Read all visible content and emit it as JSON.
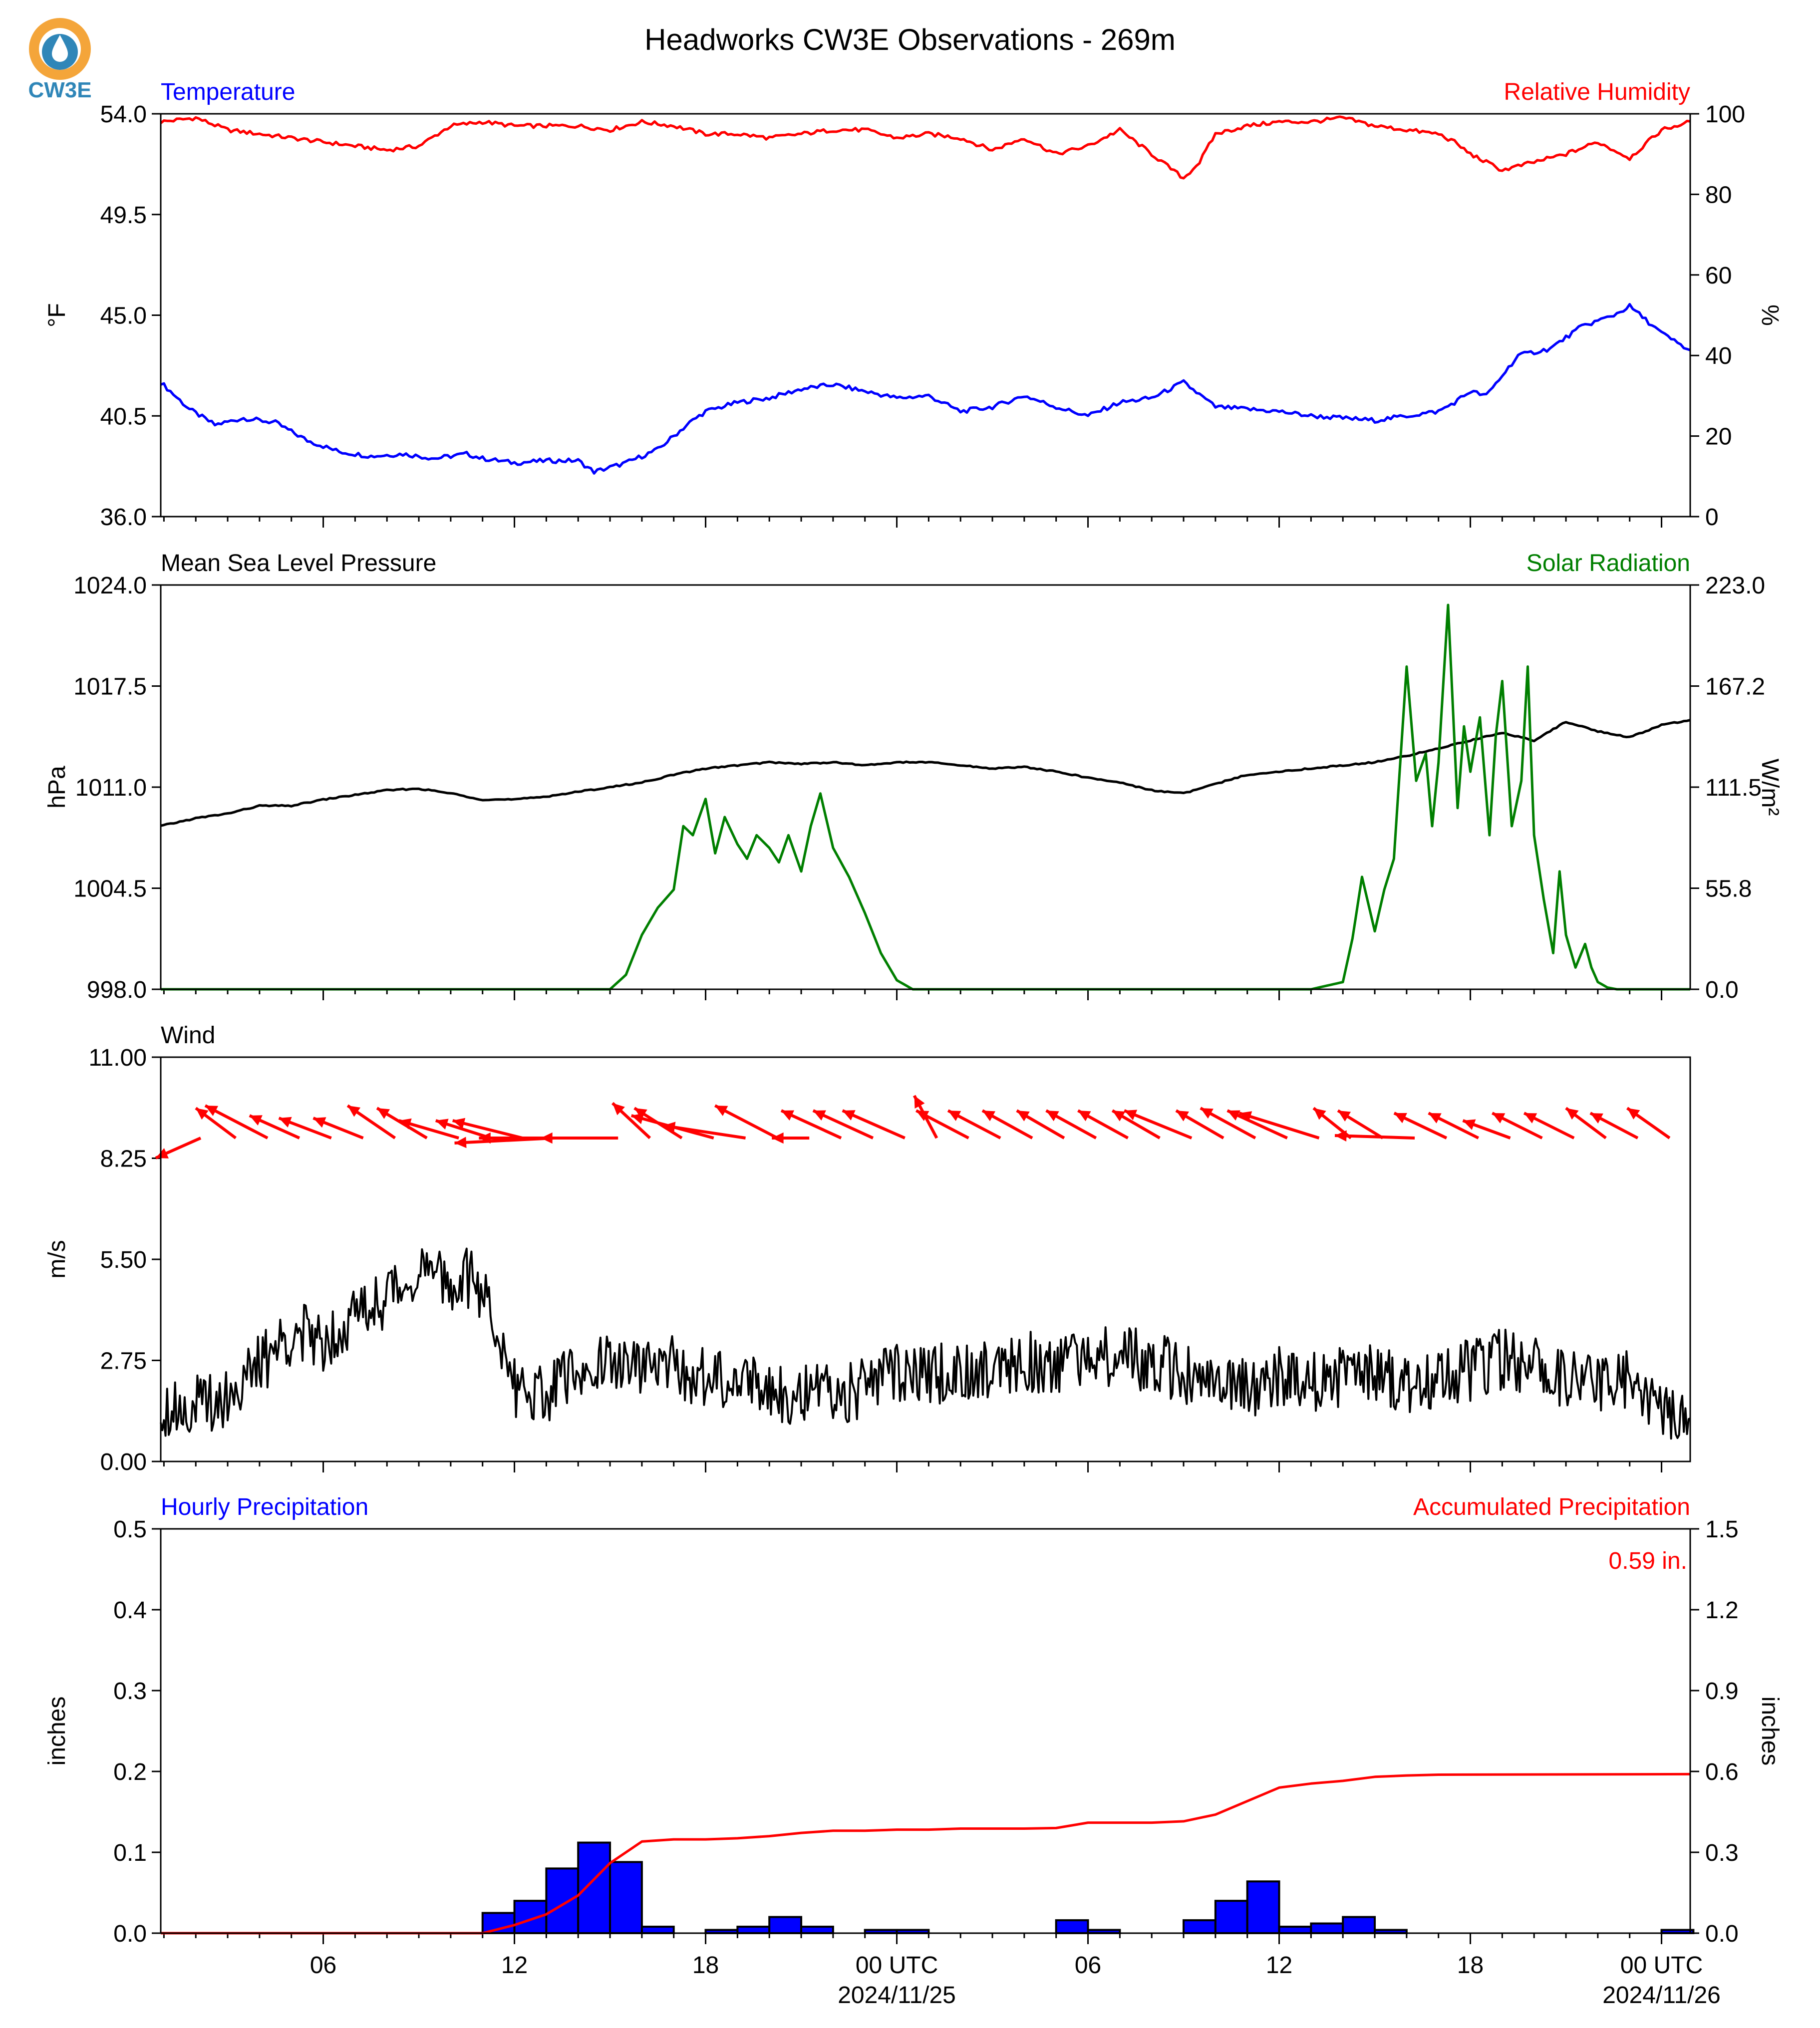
{
  "title": "Headworks CW3E Observations - 269m",
  "logo": {
    "text": "CW3E",
    "ring_color": "#f4a53a",
    "drop_color": "#2f86b8"
  },
  "colors": {
    "blue": "#0000ff",
    "red": "#ff0000",
    "green": "#007f00",
    "black": "#000000"
  },
  "x_axis": {
    "tick_labels": [
      "06",
      "12",
      "18",
      "00 UTC",
      "06",
      "12",
      "18",
      "00 UTC"
    ],
    "tick_hours": [
      6,
      12,
      18,
      24,
      30,
      36,
      42,
      48
    ],
    "date_labels": [
      "2024/11/25",
      "2024/11/26"
    ],
    "range_hours": [
      0.9,
      48.9
    ]
  },
  "chart_data": [
    {
      "type": "line",
      "title_left": "Temperature",
      "title_right": "Relative Humidity",
      "ylabel_left": "°F",
      "ylabel_right": "%",
      "ylim_left": [
        36.0,
        54.0
      ],
      "ylim_right": [
        0,
        100
      ],
      "yticks_left": [
        "36.0",
        "40.5",
        "45.0",
        "49.5",
        "54.0"
      ],
      "yticks_right": [
        "0",
        "20",
        "40",
        "60",
        "80",
        "100"
      ],
      "series": [
        {
          "axis": "left",
          "color": "#0000ff",
          "x": [
            0.9,
            1.8,
            2.6,
            3.5,
            4.5,
            5.5,
            6.5,
            7.5,
            8.5,
            9.5,
            10.5,
            11.0,
            12.0,
            13.0,
            14.0,
            14.5,
            15.5,
            16.5,
            17.5,
            18.0,
            19.0,
            20.0,
            21.0,
            22.0,
            23.0,
            24.0,
            25.0,
            26.0,
            27.0,
            28.0,
            29.0,
            30.0,
            31.0,
            32.0,
            33.0,
            34.0,
            35.0,
            36.0,
            37.0,
            38.0,
            39.0,
            40.0,
            41.0,
            41.5,
            42.0,
            42.5,
            43.5,
            44.5,
            45.5,
            46.5,
            47.0,
            48.0,
            48.9
          ],
          "values": [
            42.0,
            40.8,
            40.1,
            40.4,
            40.2,
            39.4,
            38.9,
            38.7,
            38.8,
            38.6,
            38.8,
            38.6,
            38.4,
            38.5,
            38.5,
            38.0,
            38.4,
            39.0,
            40.2,
            40.7,
            41.1,
            41.3,
            41.7,
            41.9,
            41.6,
            41.3,
            41.4,
            40.7,
            40.9,
            41.4,
            40.9,
            40.5,
            41.1,
            41.3,
            42.0,
            40.9,
            40.8,
            40.7,
            40.5,
            40.4,
            40.3,
            40.5,
            40.7,
            41.1,
            41.6,
            41.4,
            43.2,
            43.5,
            44.5,
            45.0,
            45.4,
            44.2,
            43.4
          ]
        },
        {
          "axis": "right",
          "color": "#ff0000",
          "x": [
            0.9,
            2.0,
            3.0,
            4.0,
            5.0,
            6.0,
            7.0,
            8.0,
            9.0,
            10.0,
            11.0,
            12.0,
            13.0,
            14.0,
            15.0,
            16.0,
            17.0,
            18.0,
            19.0,
            20.0,
            21.0,
            22.0,
            23.0,
            24.0,
            25.0,
            26.0,
            27.0,
            28.0,
            29.0,
            30.0,
            30.5,
            31.0,
            32.0,
            33.0,
            33.5,
            34.0,
            35.0,
            36.0,
            37.0,
            38.0,
            39.0,
            40.0,
            41.0,
            41.5,
            42.0,
            42.5,
            43.0,
            44.0,
            45.0,
            46.0,
            46.5,
            47.0,
            48.0,
            48.9
          ],
          "values": [
            98,
            99,
            96,
            95,
            94,
            93,
            92,
            91,
            92,
            97,
            98,
            97,
            97,
            97,
            96,
            98,
            97,
            95,
            95,
            94,
            95,
            96,
            96,
            94,
            95,
            94,
            91,
            94,
            90,
            92,
            94,
            96,
            90,
            84,
            88,
            95,
            97,
            98,
            98,
            99,
            97,
            96,
            95,
            93,
            90,
            88,
            86,
            88,
            90,
            93,
            91,
            89,
            96,
            98
          ]
        }
      ]
    },
    {
      "type": "line",
      "title_left": "Mean Sea Level Pressure",
      "title_right": "Solar Radiation",
      "ylabel_left": "hPa",
      "ylabel_right": "W/m²",
      "ylim_left": [
        998.0,
        1024.0
      ],
      "ylim_right": [
        0.0,
        223.0
      ],
      "yticks_left": [
        "998.0",
        "1004.5",
        "1011.0",
        "1017.5",
        "1024.0"
      ],
      "yticks_right": [
        "0.0",
        "55.8",
        "111.5",
        "167.2",
        "223.0"
      ],
      "series": [
        {
          "axis": "left",
          "color": "#000000",
          "x": [
            0.9,
            2.0,
            3.0,
            4.0,
            5.0,
            6.0,
            7.0,
            8.0,
            9.0,
            10.0,
            11.0,
            12.0,
            13.0,
            14.0,
            15.0,
            16.0,
            17.0,
            18.0,
            19.0,
            20.0,
            21.0,
            22.0,
            23.0,
            24.0,
            25.0,
            26.0,
            27.0,
            28.0,
            29.0,
            30.0,
            31.0,
            32.0,
            33.0,
            34.0,
            35.0,
            36.0,
            37.0,
            38.0,
            39.0,
            40.0,
            41.0,
            42.0,
            43.0,
            44.0,
            45.0,
            46.0,
            47.0,
            48.0,
            48.9
          ],
          "values": [
            1008.5,
            1009.0,
            1009.3,
            1009.8,
            1009.8,
            1010.2,
            1010.5,
            1010.8,
            1010.9,
            1010.6,
            1010.2,
            1010.2,
            1010.4,
            1010.7,
            1011.0,
            1011.3,
            1011.8,
            1012.2,
            1012.4,
            1012.6,
            1012.5,
            1012.6,
            1012.4,
            1012.6,
            1012.6,
            1012.4,
            1012.2,
            1012.3,
            1012.0,
            1011.6,
            1011.3,
            1010.8,
            1010.6,
            1011.2,
            1011.8,
            1012.0,
            1012.2,
            1012.4,
            1012.6,
            1013.0,
            1013.5,
            1014.0,
            1014.5,
            1014.0,
            1015.2,
            1014.6,
            1014.2,
            1015.0,
            1015.3
          ]
        },
        {
          "axis": "right",
          "color": "#007f00",
          "x": [
            0.9,
            15.0,
            15.5,
            16.0,
            16.5,
            17.0,
            17.3,
            17.6,
            18.0,
            18.3,
            18.6,
            19.0,
            19.3,
            19.6,
            20.0,
            20.3,
            20.6,
            21.0,
            21.3,
            21.6,
            22.0,
            22.5,
            23.0,
            23.5,
            24.0,
            24.5,
            37.0,
            38.0,
            38.3,
            38.6,
            39.0,
            39.3,
            39.6,
            40.0,
            40.3,
            40.6,
            40.8,
            41.0,
            41.3,
            41.6,
            41.8,
            42.0,
            42.3,
            42.6,
            42.8,
            43.0,
            43.3,
            43.6,
            43.8,
            44.0,
            44.3,
            44.6,
            44.8,
            45.0,
            45.3,
            45.6,
            45.8,
            46.0,
            46.3,
            46.6,
            47.0,
            47.5,
            48.0,
            48.9
          ],
          "values": [
            0,
            0,
            8,
            30,
            45,
            55,
            90,
            85,
            105,
            75,
            95,
            80,
            72,
            85,
            78,
            70,
            85,
            65,
            90,
            108,
            78,
            62,
            42,
            20,
            5,
            0,
            0,
            4,
            28,
            62,
            32,
            55,
            72,
            178,
            115,
            130,
            90,
            125,
            212,
            100,
            145,
            120,
            150,
            85,
            140,
            170,
            90,
            115,
            178,
            85,
            50,
            20,
            65,
            30,
            12,
            25,
            12,
            4,
            1,
            0,
            0,
            0,
            0,
            0
          ]
        }
      ]
    },
    {
      "type": "line",
      "title_left": "Wind",
      "ylabel_left": "m/s",
      "ylim_left": [
        0.0,
        11.0
      ],
      "yticks_left": [
        "0.00",
        "2.75",
        "5.50",
        "8.25",
        "11.00"
      ],
      "series": [
        {
          "axis": "left",
          "color": "#000000",
          "x": [
            0.9,
            2.0,
            3.0,
            4.0,
            5.0,
            6.0,
            7.0,
            8.0,
            9.0,
            10.0,
            10.5,
            11.0,
            11.5,
            12.0,
            13.0,
            14.0,
            15.0,
            16.0,
            17.0,
            18.0,
            19.0,
            20.0,
            21.0,
            22.0,
            23.0,
            24.0,
            25.0,
            26.0,
            27.0,
            28.0,
            29.0,
            30.0,
            31.0,
            32.0,
            33.0,
            34.0,
            35.0,
            36.0,
            37.0,
            38.0,
            39.0,
            40.0,
            41.0,
            42.0,
            43.0,
            44.0,
            45.0,
            46.0,
            47.0,
            47.5,
            48.0,
            48.9
          ],
          "values": [
            1.5,
            1.5,
            1.8,
            2.6,
            3.5,
            3.3,
            4.0,
            4.5,
            5.2,
            4.8,
            5.0,
            4.6,
            3.5,
            2.0,
            1.8,
            2.5,
            2.7,
            2.5,
            2.6,
            2.2,
            2.4,
            2.0,
            1.8,
            1.8,
            2.0,
            2.4,
            2.3,
            2.5,
            2.6,
            2.7,
            2.6,
            2.9,
            2.9,
            2.7,
            2.4,
            2.0,
            2.0,
            2.3,
            2.2,
            2.3,
            2.4,
            2.0,
            2.3,
            2.5,
            2.8,
            2.6,
            2.2,
            2.0,
            2.2,
            1.7,
            1.2,
            1.4
          ]
        },
        {
          "type": "quiver",
          "color": "#ff0000",
          "baseline": 8.8,
          "x": [
            0.9,
            2.0,
            3.0,
            4.0,
            5.0,
            6.0,
            7.0,
            8.0,
            9.0,
            10.0,
            11.0,
            12.0,
            13.0,
            14.0,
            15.0,
            16.0,
            17.0,
            18.0,
            19.0,
            20.0,
            21.0,
            22.0,
            23.0,
            24.0,
            25.0,
            26.0,
            27.0,
            28.0,
            29.0,
            30.0,
            31.0,
            32.0,
            33.0,
            34.0,
            35.0,
            36.0,
            37.0,
            38.0,
            39.0,
            40.0,
            41.0,
            42.0,
            43.0,
            44.0,
            45.0,
            46.0,
            47.0
          ],
          "u": [
            -1.8,
            -1.6,
            -2.5,
            -2.0,
            -2.1,
            -2.0,
            -1.9,
            -2.0,
            -2.4,
            -2.2,
            -2.8,
            -4.0,
            -4.3,
            -3.1,
            -1.5,
            -1.9,
            -3.3,
            -3.3,
            -2.5,
            -1.5,
            -2.4,
            -2.4,
            -2.5,
            -0.9,
            -2.1,
            -2.1,
            -2.0,
            -1.9,
            -2.0,
            -2.0,
            -1.9,
            -2.7,
            -1.9,
            -2.2,
            -2.4,
            -3.2,
            -1.5,
            -1.8,
            -3.2,
            -2.1,
            -2.0,
            -1.9,
            -2.0,
            -2.0,
            -1.6,
            -1.9,
            -1.7
          ],
          "v": [
            -0.8,
            1.2,
            1.3,
            0.9,
            0.8,
            0.8,
            1.3,
            1.2,
            0.7,
            0.7,
            0.7,
            -0.2,
            0.0,
            0.0,
            1.4,
            1.2,
            0.9,
            0.5,
            1.3,
            0.0,
            1.1,
            1.1,
            1.1,
            1.7,
            1.1,
            1.1,
            1.1,
            1.1,
            1.1,
            1.1,
            1.1,
            1.1,
            1.1,
            1.2,
            1.1,
            1.0,
            1.2,
            1.1,
            0.1,
            1.0,
            1.0,
            0.7,
            1.0,
            1.0,
            1.2,
            1.0,
            1.2
          ]
        }
      ]
    },
    {
      "type": "bar",
      "title_left": "Hourly Precipitation",
      "title_right": "Accumulated Precipitation",
      "annotation": "0.59 in.",
      "ylabel_left": "inches",
      "ylabel_right": "inches",
      "ylim_left": [
        0.0,
        0.5
      ],
      "ylim_right": [
        0.0,
        1.5
      ],
      "yticks_left": [
        "0.0",
        "0.1",
        "0.2",
        "0.3",
        "0.4",
        "0.5"
      ],
      "yticks_right": [
        "0.0",
        "0.3",
        "0.6",
        "0.9",
        "1.2",
        "1.5"
      ],
      "bars": {
        "color": "#0000ff",
        "x_start": [
          11.0,
          12.0,
          13.0,
          14.0,
          15.0,
          16.0,
          18.0,
          19.0,
          20.0,
          21.0,
          23.0,
          24.0,
          29.0,
          30.0,
          33.0,
          34.0,
          35.0,
          36.0,
          37.0,
          38.0,
          39.0,
          48.0
        ],
        "values": [
          0.025,
          0.04,
          0.08,
          0.112,
          0.088,
          0.008,
          0.004,
          0.008,
          0.02,
          0.008,
          0.004,
          0.004,
          0.016,
          0.004,
          0.016,
          0.04,
          0.064,
          0.008,
          0.012,
          0.02,
          0.004,
          0.004
        ]
      },
      "accum": {
        "color": "#ff0000",
        "x": [
          0.9,
          11.0,
          12.0,
          13.0,
          14.0,
          15.0,
          16.0,
          17.0,
          18.0,
          19.0,
          20.0,
          21.0,
          22.0,
          23.0,
          24.0,
          25.0,
          26.0,
          27.0,
          28.0,
          29.0,
          30.0,
          31.0,
          32.0,
          33.0,
          34.0,
          35.0,
          36.0,
          37.0,
          38.0,
          39.0,
          40.0,
          41.0,
          48.9
        ],
        "values": [
          0.0,
          0.0,
          0.03,
          0.07,
          0.14,
          0.26,
          0.34,
          0.348,
          0.348,
          0.352,
          0.36,
          0.372,
          0.38,
          0.38,
          0.384,
          0.384,
          0.388,
          0.388,
          0.388,
          0.39,
          0.41,
          0.41,
          0.41,
          0.415,
          0.44,
          0.49,
          0.54,
          0.555,
          0.565,
          0.58,
          0.585,
          0.588,
          0.59
        ]
      }
    }
  ]
}
